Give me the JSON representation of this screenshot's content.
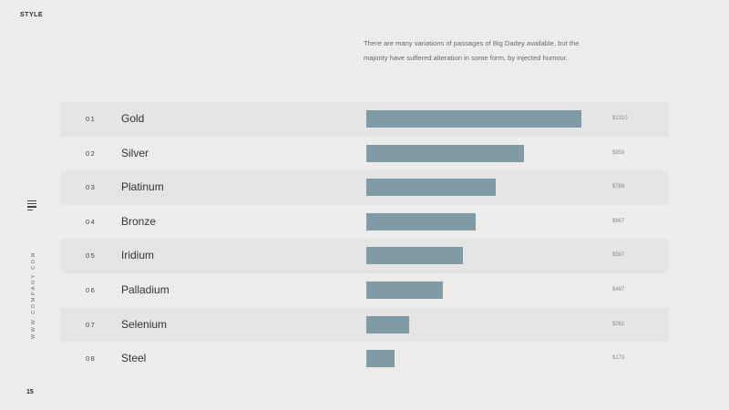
{
  "header": {
    "brand": "STYLE"
  },
  "description": "There are many variations of passages of Big Dadey available, but the majority have suffered alteration in some form, by injected humour.",
  "sidebar": {
    "website": "WWW.COMPANY.COM",
    "icon": "menu-lines-icon"
  },
  "footer": {
    "page_number": "15"
  },
  "colors": {
    "bar": "#7f9ba6",
    "shaded_row": "#e3e4e3",
    "background": "#ececeb"
  },
  "chart_data": {
    "type": "bar",
    "orientation": "horizontal",
    "categories": [
      "Gold",
      "Silver",
      "Platinum",
      "Bronze",
      "Iridium",
      "Palladium",
      "Selenium",
      "Steel"
    ],
    "indices": [
      "01",
      "02",
      "03",
      "04",
      "05",
      "06",
      "07",
      "08"
    ],
    "values": [
      1310,
      958,
      789,
      667,
      587,
      467,
      261,
      173
    ],
    "value_labels": [
      "$1310",
      "$958",
      "$789",
      "$667",
      "$587",
      "$467",
      "$261",
      "$173"
    ],
    "xlim": [
      0,
      1310
    ],
    "title": "",
    "xlabel": "",
    "ylabel": ""
  }
}
